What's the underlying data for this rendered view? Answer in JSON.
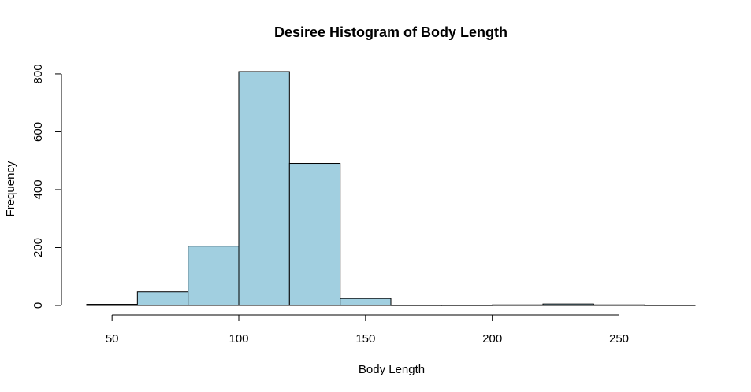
{
  "chart_data": {
    "type": "bar",
    "title": "Desiree Histogram of Body Length",
    "xlabel": "Body Length",
    "ylabel": "Frequency",
    "bin_edges": [
      40,
      60,
      80,
      100,
      120,
      140,
      160,
      180,
      200,
      220,
      240,
      260,
      280
    ],
    "values": [
      4,
      47,
      205,
      808,
      491,
      24,
      1,
      1,
      2,
      5,
      2,
      1
    ],
    "bar_color": "#a1cfe0",
    "xlim": [
      40,
      280
    ],
    "ylim": [
      0,
      808
    ],
    "x_ticks": [
      50,
      100,
      150,
      200,
      250
    ],
    "y_ticks": [
      0,
      200,
      400,
      600,
      800
    ],
    "grid": false,
    "legend": "none"
  }
}
